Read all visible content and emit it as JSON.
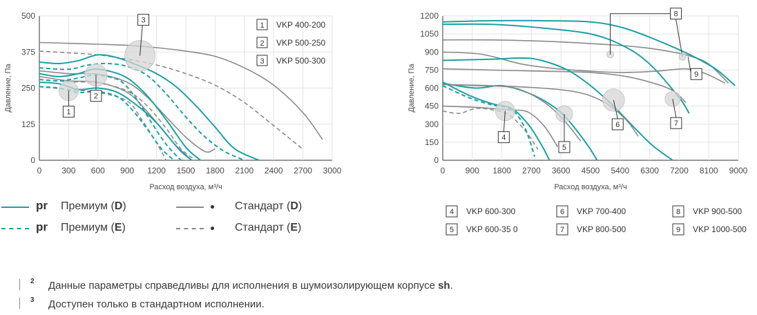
{
  "chart_data": [
    {
      "type": "line",
      "ylabel": "Давление, Па",
      "xlabel": "Расход воздуха, м³/ч",
      "xlim": [
        0,
        3000
      ],
      "ylim": [
        0,
        500
      ],
      "xticks": [
        "0",
        "300",
        "600",
        "900",
        "1200",
        "1500",
        "1800",
        "2100",
        "2400",
        "2700",
        "3000"
      ],
      "yticks": [
        "0",
        "125",
        "250",
        "375",
        "500"
      ],
      "legend": [
        {
          "num": "1",
          "label": "VKP 400-200"
        },
        {
          "num": "2",
          "label": "VKP 500-250"
        },
        {
          "num": "3",
          "label": "VKP 500-300"
        }
      ],
      "markers": [
        {
          "num": "1",
          "x": 300,
          "y": 240
        },
        {
          "num": "2",
          "x": 580,
          "y": 295
        },
        {
          "num": "3",
          "x": 1030,
          "y": 362
        }
      ],
      "series": [
        {
          "style": "std-D",
          "x": [
            0,
            300,
            600,
            900,
            1200,
            1500,
            1800,
            2100,
            2400,
            2700,
            2900
          ],
          "y": [
            408,
            405,
            402,
            398,
            390,
            378,
            360,
            320,
            260,
            165,
            72
          ]
        },
        {
          "style": "std-E",
          "x": [
            0,
            300,
            600,
            900,
            1200,
            1500,
            1800,
            2100,
            2400,
            2700
          ],
          "y": [
            378,
            372,
            365,
            350,
            330,
            300,
            260,
            200,
            120,
            38
          ]
        },
        {
          "style": "std-D",
          "x": [
            0,
            300,
            600,
            900,
            1100,
            1300,
            1450,
            1560
          ],
          "y": [
            290,
            275,
            270,
            235,
            170,
            90,
            30,
            0
          ]
        },
        {
          "style": "std-E",
          "x": [
            0,
            300,
            600,
            900,
            1050,
            1200,
            1300
          ],
          "y": [
            255,
            245,
            235,
            205,
            140,
            60,
            0
          ]
        },
        {
          "style": "std-D",
          "x": [
            0,
            300,
            600,
            900,
            1100,
            1300,
            1500,
            1700,
            1800
          ],
          "y": [
            310,
            300,
            298,
            270,
            220,
            150,
            80,
            30,
            40
          ]
        },
        {
          "style": "std-E",
          "x": [
            0,
            300,
            600,
            900,
            1100,
            1300,
            1450,
            1600
          ],
          "y": [
            280,
            272,
            268,
            240,
            190,
            110,
            40,
            0
          ]
        },
        {
          "style": "pr-D",
          "x": [
            0,
            200,
            400,
            600,
            800,
            1000,
            1200,
            1400,
            1600,
            1800,
            2000,
            2250
          ],
          "y": [
            340,
            335,
            345,
            365,
            355,
            330,
            300,
            255,
            190,
            115,
            40,
            0
          ]
        },
        {
          "style": "pr-E",
          "x": [
            0,
            300,
            500,
            700,
            900,
            1100,
            1300,
            1500,
            1700,
            1900,
            2100
          ],
          "y": [
            320,
            315,
            330,
            335,
            325,
            295,
            230,
            150,
            80,
            30,
            0
          ]
        },
        {
          "style": "pr-D",
          "x": [
            0,
            200,
            400,
            550,
            700,
            900,
            1100,
            1300,
            1500,
            1650
          ],
          "y": [
            300,
            290,
            300,
            315,
            310,
            285,
            225,
            140,
            45,
            0
          ]
        },
        {
          "style": "pr-E",
          "x": [
            0,
            200,
            400,
            550,
            700,
            850,
            1000,
            1150,
            1300,
            1450
          ],
          "y": [
            280,
            275,
            285,
            295,
            290,
            270,
            210,
            130,
            55,
            0
          ]
        },
        {
          "style": "pr-D",
          "x": [
            0,
            200,
            400,
            600,
            800,
            1000,
            1200,
            1400,
            1560
          ],
          "y": [
            270,
            265,
            245,
            250,
            235,
            190,
            130,
            50,
            0
          ]
        },
        {
          "style": "pr-E",
          "x": [
            0,
            200,
            400,
            600,
            800,
            950,
            1100,
            1250,
            1380
          ],
          "y": [
            255,
            250,
            235,
            238,
            220,
            175,
            110,
            40,
            0
          ]
        }
      ]
    },
    {
      "type": "line",
      "ylabel": "Давление, Па",
      "xlabel": "Расход воздуха, м³/ч",
      "xlim": [
        0,
        9000
      ],
      "ylim": [
        0,
        1200
      ],
      "xticks": [
        "0",
        "900",
        "1800",
        "2700",
        "3600",
        "4500",
        "5400",
        "6300",
        "7200",
        "8100",
        "9000"
      ],
      "yticks": [
        "0",
        "150",
        "300",
        "450",
        "600",
        "750",
        "900",
        "1050",
        "1200"
      ],
      "legend": [
        {
          "num": "4",
          "label": "VKP 600-300"
        },
        {
          "num": "5",
          "label": "VKP 600-35 0"
        },
        {
          "num": "6",
          "label": "VKP 700-400"
        },
        {
          "num": "7",
          "label": "VKP 800-500"
        },
        {
          "num": "8",
          "label": "VKP 900-500"
        },
        {
          "num": "9",
          "label": "VKP 1000-500"
        }
      ],
      "markers": [
        {
          "num": "4",
          "x": 1900,
          "y": 410
        },
        {
          "num": "5",
          "x": 3700,
          "y": 385
        },
        {
          "num": "6",
          "x": 5200,
          "y": 500
        },
        {
          "num": "7",
          "x": 7000,
          "y": 510
        },
        {
          "num": "8",
          "x": 5100,
          "y": 880
        },
        {
          "num": "9",
          "x": 7300,
          "y": 860
        }
      ],
      "series": [
        {
          "style": "std-D",
          "x": [
            0,
            1500,
            3000,
            4500,
            6000,
            7000,
            7600,
            8100,
            8700
          ],
          "y": [
            1000,
            1000,
            990,
            970,
            940,
            900,
            860,
            800,
            640
          ]
        },
        {
          "style": "pr-D",
          "x": [
            0,
            1500,
            3000,
            4500,
            5500,
            6500,
            7500,
            8300,
            8900
          ],
          "y": [
            1150,
            1160,
            1160,
            1150,
            1100,
            1000,
            880,
            760,
            620
          ]
        },
        {
          "style": "pr-D",
          "x": [
            0,
            1500,
            3000,
            4500,
            5500,
            6300,
            7200,
            7500
          ],
          "y": [
            1130,
            1130,
            1100,
            1050,
            950,
            800,
            520,
            390
          ]
        },
        {
          "style": "std-D",
          "x": [
            0,
            1200,
            2400,
            3500,
            4500,
            5500,
            6500,
            7400,
            8000,
            8600
          ],
          "y": [
            900,
            880,
            800,
            760,
            740,
            730,
            740,
            760,
            720,
            640
          ]
        },
        {
          "style": "std-D",
          "x": [
            0,
            1500,
            3000,
            4500,
            5500,
            6300,
            7000,
            7400
          ],
          "y": [
            760,
            750,
            740,
            730,
            700,
            650,
            580,
            480
          ]
        },
        {
          "style": "pr-D",
          "x": [
            0,
            1500,
            2400,
            3000,
            3800,
            4500,
            5200,
            5800,
            6400,
            7000
          ],
          "y": [
            830,
            840,
            850,
            830,
            750,
            620,
            450,
            280,
            120,
            0
          ]
        },
        {
          "style": "std-D",
          "x": [
            0,
            1500,
            3000,
            4200,
            5000,
            5600,
            5950
          ],
          "y": [
            630,
            620,
            600,
            560,
            470,
            330,
            200
          ]
        },
        {
          "style": "pr-D",
          "x": [
            0,
            1000,
            1800,
            2600,
            3300,
            3800,
            4400,
            4700
          ],
          "y": [
            640,
            600,
            620,
            560,
            460,
            340,
            130,
            0
          ]
        },
        {
          "style": "std-D",
          "x": [
            0,
            1000,
            2000,
            2600,
            3200,
            3700,
            4200
          ],
          "y": [
            630,
            620,
            610,
            560,
            460,
            330,
            160
          ]
        },
        {
          "style": "std-D",
          "x": [
            0,
            1000,
            2000,
            2600,
            3100,
            3500
          ],
          "y": [
            450,
            440,
            420,
            400,
            280,
            110
          ]
        },
        {
          "style": "std-E",
          "x": [
            0,
            500,
            1000,
            1500,
            2000,
            2500,
            2900
          ],
          "y": [
            410,
            390,
            430,
            420,
            380,
            250,
            90
          ]
        },
        {
          "style": "pr-D",
          "x": [
            0,
            800,
            1500,
            2100,
            2600,
            3000,
            3250
          ],
          "y": [
            650,
            540,
            470,
            430,
            300,
            130,
            0
          ]
        },
        {
          "style": "pr-E",
          "x": [
            0,
            800,
            1500,
            2100,
            2500,
            2800
          ],
          "y": [
            620,
            520,
            460,
            420,
            270,
            30
          ]
        }
      ]
    }
  ],
  "series_legend": [
    {
      "style": "pr-D",
      "abbr": "pr",
      "label_pre": "Премиум (",
      "label_bold": "D",
      "label_post": ")"
    },
    {
      "style": "pr-E",
      "abbr": "pr",
      "label_pre": "Премиум (",
      "label_bold": "E",
      "label_post": ")"
    },
    {
      "style": "std-D",
      "abbr": "•",
      "label_pre": "Стандарт (",
      "label_bold": "D",
      "label_post": ")"
    },
    {
      "style": "std-E",
      "abbr": "•",
      "label_pre": "Стандарт (",
      "label_bold": "E",
      "label_post": ")"
    }
  ],
  "footnotes": [
    {
      "num": "2",
      "text": "Данные параметры справедливы для исполнения в шумоизолирующем корпусе ",
      "bold": "sh",
      "after": "."
    },
    {
      "num": "3",
      "text": "Доступен только в стандартном исполнении.",
      "bold": "",
      "after": ""
    }
  ],
  "colors": {
    "premium": "#1aa1a5",
    "standard": "#8a8a8a",
    "marker": "#d6d6d6",
    "axis": "#333333"
  }
}
